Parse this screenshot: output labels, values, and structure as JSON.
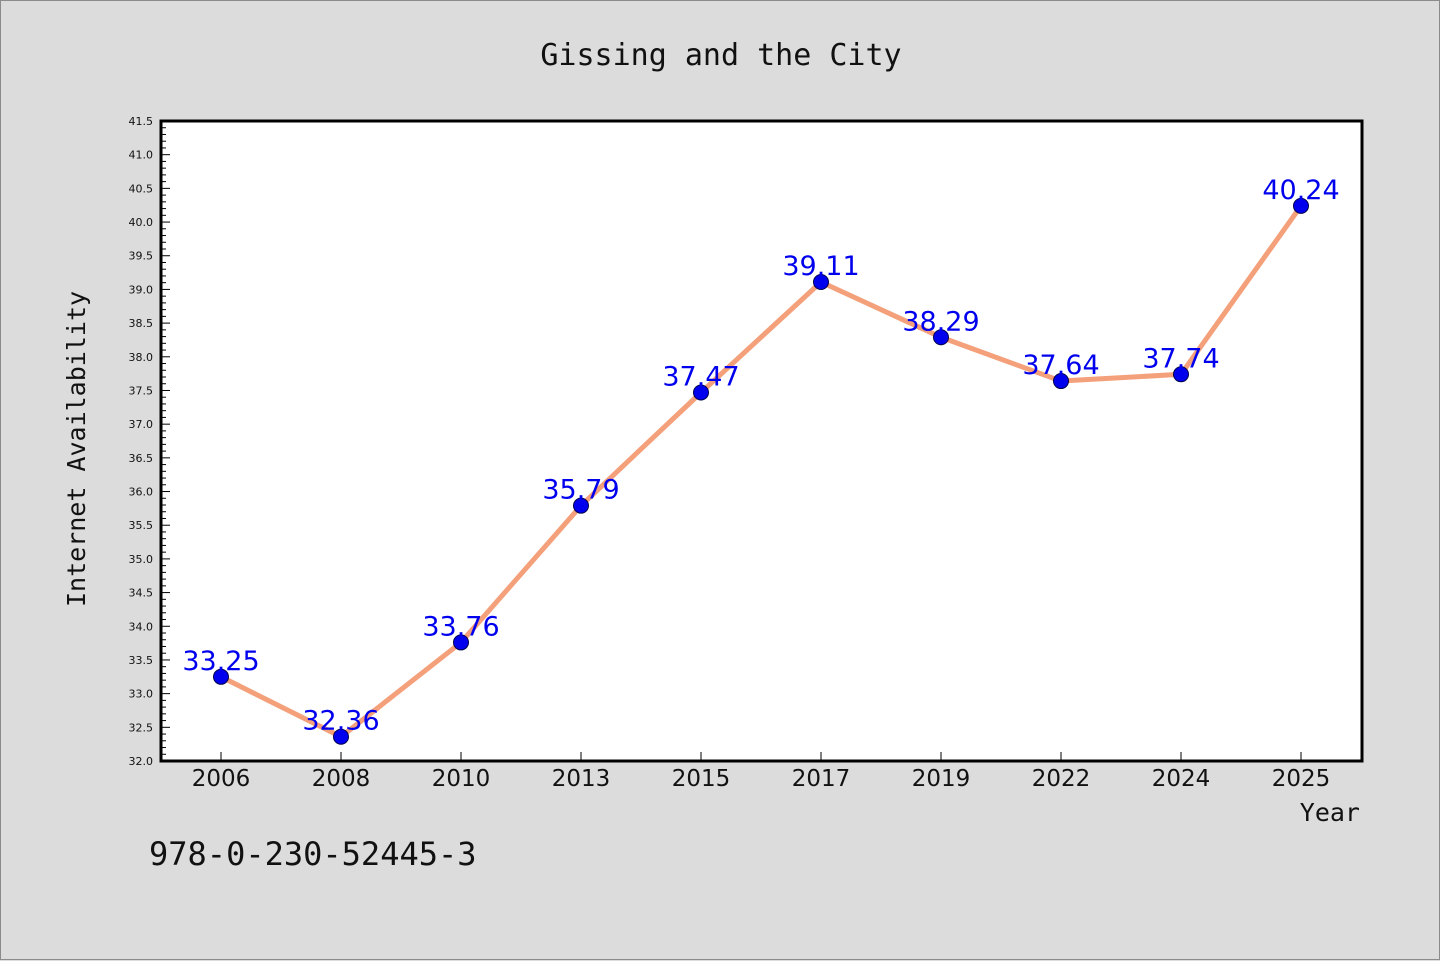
{
  "chart_data": {
    "type": "line",
    "title": "Gissing and the City",
    "xlabel": "Year",
    "ylabel": "Internet Availability",
    "categories": [
      "2006",
      "2008",
      "2010",
      "2013",
      "2015",
      "2017",
      "2019",
      "2022",
      "2024",
      "2025"
    ],
    "series": [
      {
        "values": [
          33.25,
          32.36,
          33.76,
          35.79,
          37.47,
          39.11,
          38.29,
          37.64,
          37.74,
          40.24
        ],
        "data_labels": [
          "33.25",
          "32.36",
          "33.76",
          "35.79",
          "37.47",
          "39.11",
          "38.29",
          "37.64",
          "37.74",
          "40.24"
        ]
      }
    ],
    "ylim": [
      32.0,
      41.5
    ],
    "ytick_labels": [
      "32.0",
      "32.5",
      "33.0",
      "33.5",
      "34.0",
      "34.5",
      "35.0",
      "35.5",
      "36.0",
      "36.5",
      "37.0",
      "37.5",
      "38.0",
      "38.5",
      "39.0",
      "39.5",
      "40.0",
      "40.5",
      "41.0",
      "41.5"
    ],
    "grid": false,
    "legend": "none",
    "footnote": "978-0-230-52445-3",
    "colors": {
      "background": "#dcdcdc",
      "plot_area": "#ffffff",
      "line": "#f4a07a",
      "marker": "#0000ee",
      "data_label": "#0000ee"
    }
  }
}
